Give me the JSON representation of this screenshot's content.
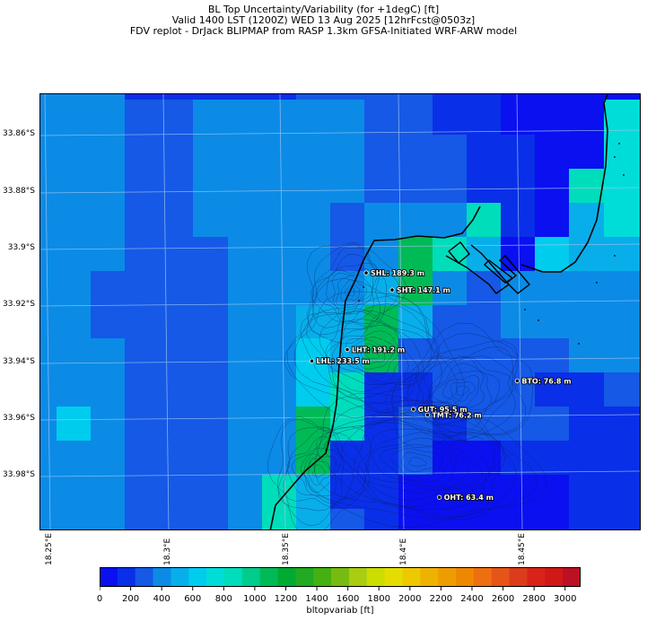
{
  "title": {
    "line1": "BL Top Uncertainty/Variability (for +1degC) [ft]",
    "line2": "Valid 1400 LST (1200Z) WED 13 Aug 2025 [12hrFcst@0503z]",
    "line3": "FDV replot - DrJack BLIPMAP from RASP 1.3km GFSA-Initiated WRF-ARW model"
  },
  "axes": {
    "lat_labels": [
      "33.86°S",
      "33.88°S",
      "33.9°S",
      "33.92°S",
      "33.94°S",
      "33.96°S",
      "33.98°S"
    ],
    "lon_labels": [
      "18.25°E",
      "18.3°E",
      "18.35°E",
      "18.4°E",
      "18.45°E"
    ]
  },
  "chart_data": {
    "type": "heatmap",
    "variable": "bltopvariab",
    "unit": "ft",
    "scale": [
      0,
      3100
    ],
    "stations": [
      {
        "label": "SHL: 189.3 m",
        "lon": 18.385,
        "lat": -33.909
      },
      {
        "label": "SHT: 147.1 m",
        "lon": 18.396,
        "lat": -33.915
      },
      {
        "label": "LHT: 191.2 m",
        "lon": 18.377,
        "lat": -33.936
      },
      {
        "label": "LHL: 233.5 m",
        "lon": 18.362,
        "lat": -33.94
      },
      {
        "label": "BTO: 76.8 m",
        "lon": 18.449,
        "lat": -33.947
      },
      {
        "label": "GUT: 95.5 m",
        "lon": 18.405,
        "lat": -33.957
      },
      {
        "label": "TMT: 76.2 m",
        "lon": 18.411,
        "lat": -33.959
      },
      {
        "label": "OHT: 63.4 m",
        "lon": 18.416,
        "lat": -33.988
      }
    ]
  },
  "colorbar": {
    "label": "bltopvariab [ft]",
    "ticks": [
      "0",
      "200",
      "400",
      "600",
      "800",
      "1000",
      "1200",
      "1400",
      "1600",
      "1800",
      "2000",
      "2200",
      "2400",
      "2600",
      "2800",
      "3000"
    ],
    "colors": [
      "#0A10F0",
      "#0A2FE8",
      "#1559E6",
      "#0B8BE6",
      "#08AEEA",
      "#00CCEE",
      "#00DDD8",
      "#00DDBB",
      "#00CC8C",
      "#00BB55",
      "#00AA33",
      "#22AA22",
      "#44B011",
      "#77BB11",
      "#AACC11",
      "#CCDD00",
      "#E5DD00",
      "#EEC800",
      "#EEB200",
      "#EE9D00",
      "#EE8800",
      "#EE6F10",
      "#E65518",
      "#DD3C1C",
      "#D82418",
      "#D01818",
      "#BB1122"
    ]
  }
}
